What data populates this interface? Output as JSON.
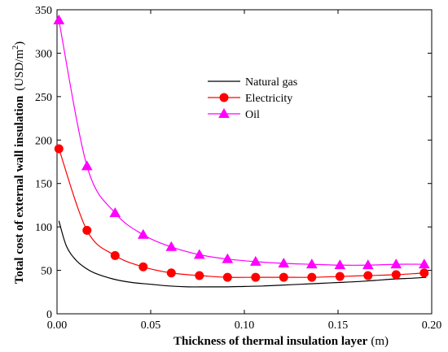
{
  "chart_data": {
    "type": "line",
    "xlabel": "Thickness of thermal insulation layer",
    "xlabel_unit": "(m)",
    "ylabel": "Total cost of  external wall insulation",
    "ylabel_unit": "(USD/m",
    "ylabel_unit_sup": "2",
    "ylabel_unit_close": ")",
    "xlim": [
      0,
      0.2
    ],
    "ylim": [
      0,
      350
    ],
    "x_ticks": [
      0.0,
      0.05,
      0.1,
      0.15,
      0.2
    ],
    "x_tick_labels": [
      "0.00",
      "0.05",
      "0.10",
      "0.15",
      "0.20"
    ],
    "y_ticks": [
      0,
      50,
      100,
      150,
      200,
      250,
      300,
      350
    ],
    "y_tick_labels": [
      "0",
      "50",
      "100",
      "150",
      "200",
      "250",
      "300",
      "350"
    ],
    "grid": false,
    "legend_position": "upper-middle",
    "series": [
      {
        "name": "Natural gas",
        "color": "#000000",
        "marker": "none",
        "x": [
          0.001,
          0.005,
          0.01,
          0.015,
          0.02,
          0.03,
          0.04,
          0.05,
          0.06,
          0.07,
          0.08,
          0.09,
          0.1,
          0.11,
          0.12,
          0.13,
          0.14,
          0.15,
          0.16,
          0.17,
          0.18,
          0.19,
          0.197
        ],
        "y": [
          107,
          78,
          62,
          53,
          47,
          40,
          36,
          34,
          32,
          31,
          31,
          31,
          31.5,
          32,
          33,
          34,
          35,
          36,
          37,
          38.5,
          40,
          41,
          42
        ]
      },
      {
        "name": "Electricity",
        "color": "#ff0000",
        "marker": "circle",
        "x": [
          0.001,
          0.016,
          0.031,
          0.046,
          0.061,
          0.076,
          0.091,
          0.106,
          0.121,
          0.136,
          0.151,
          0.166,
          0.181,
          0.196
        ],
        "y": [
          190,
          96,
          67,
          54,
          47,
          44,
          42,
          42,
          42,
          42,
          43,
          44,
          45,
          47
        ]
      },
      {
        "name": "Oil",
        "color": "#ff00ff",
        "marker": "triangle",
        "x": [
          0.001,
          0.016,
          0.031,
          0.046,
          0.061,
          0.076,
          0.091,
          0.106,
          0.121,
          0.136,
          0.151,
          0.166,
          0.181,
          0.196
        ],
        "y": [
          338,
          170,
          116,
          91,
          77,
          68,
          63,
          60,
          58,
          57,
          56,
          56,
          57,
          57
        ]
      }
    ]
  }
}
